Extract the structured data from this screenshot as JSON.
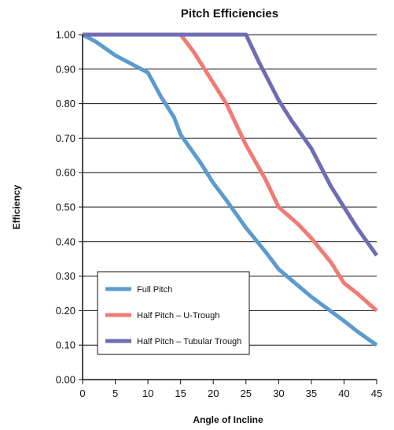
{
  "chart_data": {
    "type": "line",
    "title": "Pitch Efficiencies",
    "xlabel": "Angle of Incline",
    "ylabel": "Efficiency",
    "xlim": [
      0,
      45
    ],
    "ylim": [
      0,
      1.0
    ],
    "xticks": [
      0,
      5,
      10,
      15,
      20,
      25,
      30,
      35,
      40,
      45
    ],
    "yticks": [
      0.0,
      0.1,
      0.2,
      0.3,
      0.4,
      0.5,
      0.6,
      0.7,
      0.8,
      0.9,
      1.0
    ],
    "xtick_labels": [
      "0",
      "5",
      "10",
      "15",
      "20",
      "25",
      "30",
      "35",
      "40",
      "45"
    ],
    "ytick_labels": [
      "0.00",
      "0.10",
      "0.20",
      "0.30",
      "0.40",
      "0.50",
      "0.60",
      "0.70",
      "0.80",
      "0.90",
      "1.00"
    ],
    "grid": "horizontal",
    "legend_position": "bottom-left",
    "series": [
      {
        "name": "Full Pitch",
        "color": "#5b9bcf",
        "x": [
          0,
          2,
          5,
          8,
          10,
          12,
          14,
          15,
          18,
          20,
          22,
          25,
          28,
          30,
          35,
          40,
          42,
          45
        ],
        "y": [
          1.0,
          0.98,
          0.94,
          0.91,
          0.89,
          0.82,
          0.76,
          0.71,
          0.63,
          0.57,
          0.52,
          0.44,
          0.37,
          0.32,
          0.24,
          0.17,
          0.14,
          0.1
        ]
      },
      {
        "name": "Half Pitch – U-Trough",
        "color": "#f07b74",
        "x": [
          0,
          15,
          17,
          20,
          22,
          25,
          28,
          30,
          33,
          35,
          38,
          40,
          42,
          45
        ],
        "y": [
          1.0,
          1.0,
          0.95,
          0.86,
          0.8,
          0.68,
          0.58,
          0.5,
          0.45,
          0.41,
          0.34,
          0.28,
          0.25,
          0.2
        ]
      },
      {
        "name": "Half Pitch – Tubular Trough",
        "color": "#6e6db4",
        "x": [
          0,
          25,
          27,
          30,
          32,
          35,
          38,
          40,
          42,
          45
        ],
        "y": [
          1.0,
          1.0,
          0.92,
          0.81,
          0.75,
          0.67,
          0.56,
          0.5,
          0.44,
          0.36
        ]
      }
    ]
  }
}
